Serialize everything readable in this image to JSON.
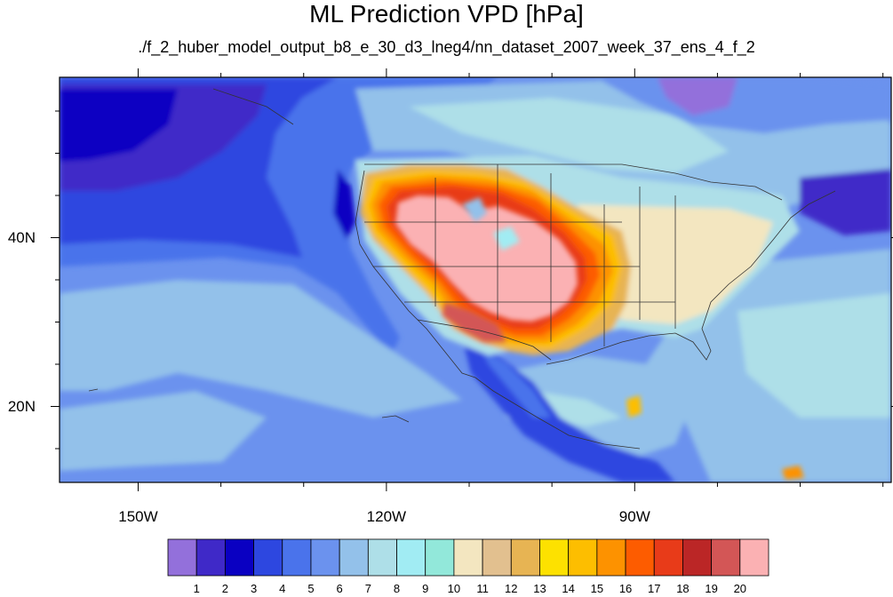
{
  "title": "ML Prediction VPD [hPa]",
  "subtitle": "./f_2_huber_model_output_b8_e_30_d3_lneg4/nn_dataset_2007_week_37_ens_4_f_2",
  "map": {
    "lon_labels": [
      {
        "value": -150,
        "text": "150W"
      },
      {
        "value": -120,
        "text": "120W"
      },
      {
        "value": -90,
        "text": "90W"
      }
    ],
    "lat_labels": [
      {
        "value": 40,
        "text": "40N"
      },
      {
        "value": 20,
        "text": "20N"
      }
    ],
    "extent": {
      "lon_min": -159.5,
      "lon_max": -59,
      "lat_min": 11,
      "lat_max": 59
    }
  },
  "colorbar": {
    "labels": [
      "1",
      "2",
      "3",
      "4",
      "5",
      "6",
      "7",
      "8",
      "9",
      "10",
      "11",
      "12",
      "13",
      "14",
      "15",
      "16",
      "17",
      "18",
      "19",
      "20"
    ],
    "colors": [
      "#9370db",
      "#3f29c8",
      "#0a00c2",
      "#2d47e0",
      "#4a73eb",
      "#6b92ee",
      "#93c1ea",
      "#aedfe8",
      "#a1ecf3",
      "#92e8da",
      "#f3e6c0",
      "#e2c08f",
      "#e7b453",
      "#fde100",
      "#fdbe00",
      "#fd9200",
      "#fd5c00",
      "#e83b19",
      "#bb2626",
      "#d35656",
      "#fbb1b3"
    ]
  }
}
